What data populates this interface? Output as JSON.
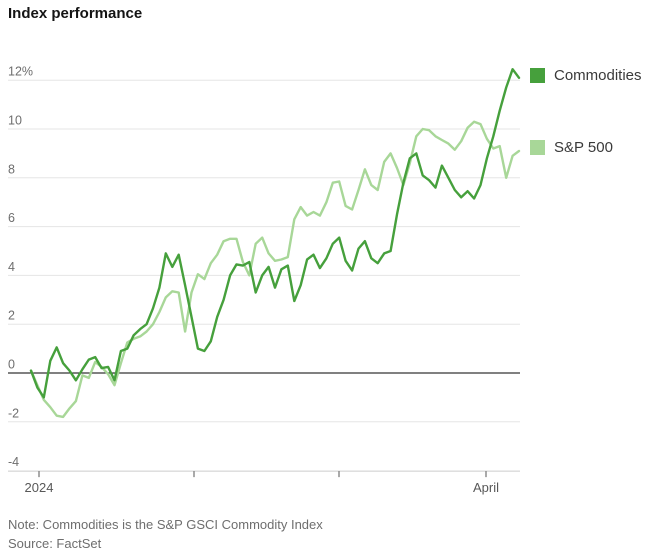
{
  "header": {
    "title": "Index performance"
  },
  "legend": [
    {
      "label": "Commodities",
      "color": "#46a03c"
    },
    {
      "label": "S&P 500",
      "color": "#a8d798"
    }
  ],
  "footnote": {
    "note": "Note: Commodities is the S&P GSCI Commodity Index",
    "source": "Source: FactSet"
  },
  "chart_data": {
    "type": "line",
    "title": "Index performance",
    "unit": "%",
    "ylim": [
      -4,
      12.5
    ],
    "grid": "horizontal",
    "legend_position": "right",
    "x_axis": {
      "ticks": [
        {
          "label": "2024"
        },
        {
          "label": ""
        },
        {
          "label": ""
        },
        {
          "label": "April"
        }
      ]
    },
    "y_axis": {
      "tick_values": [
        12,
        10,
        8,
        6,
        4,
        2,
        0,
        -2,
        -4
      ],
      "tick_labels": [
        "12%",
        "10",
        "8",
        "6",
        "4",
        "2",
        "0",
        "-2",
        "-4"
      ],
      "zero_line": true
    },
    "series": [
      {
        "name": "Commodities",
        "color": "#46a03c",
        "values": [
          0.1,
          -0.6,
          -1.0,
          0.5,
          1.05,
          0.4,
          0.1,
          -0.3,
          0.15,
          0.55,
          0.65,
          0.2,
          0.25,
          -0.3,
          0.9,
          1.0,
          1.55,
          1.8,
          2.0,
          2.65,
          3.5,
          4.9,
          4.35,
          4.85,
          3.6,
          2.3,
          1.0,
          0.9,
          1.3,
          2.3,
          3.0,
          4.0,
          4.45,
          4.4,
          4.55,
          3.3,
          4.0,
          4.35,
          3.5,
          4.25,
          4.4,
          2.95,
          3.6,
          4.65,
          4.85,
          4.3,
          4.7,
          5.3,
          5.55,
          4.6,
          4.2,
          5.1,
          5.4,
          4.7,
          4.5,
          4.9,
          5.0,
          6.5,
          7.8,
          8.8,
          9.0,
          8.1,
          7.9,
          7.6,
          8.5,
          8.0,
          7.5,
          7.2,
          7.45,
          7.15,
          7.7,
          8.8,
          9.7,
          10.75,
          11.7,
          12.45,
          12.1
        ]
      },
      {
        "name": "S&P 500",
        "color": "#a8d798",
        "values": [
          0.1,
          -0.5,
          -1.1,
          -1.4,
          -1.75,
          -1.8,
          -1.45,
          -1.15,
          -0.1,
          -0.2,
          0.45,
          0.25,
          -0.05,
          -0.5,
          0.4,
          1.25,
          1.4,
          1.5,
          1.7,
          2.0,
          2.5,
          3.1,
          3.35,
          3.3,
          1.7,
          3.3,
          4.05,
          3.85,
          4.5,
          4.85,
          5.4,
          5.5,
          5.5,
          4.55,
          4.0,
          5.3,
          5.55,
          4.9,
          4.6,
          4.65,
          4.75,
          6.3,
          6.8,
          6.45,
          6.6,
          6.45,
          7.0,
          7.8,
          7.85,
          6.85,
          6.7,
          7.5,
          8.35,
          7.7,
          7.5,
          8.65,
          9.0,
          8.4,
          7.7,
          8.6,
          9.7,
          10.0,
          9.95,
          9.7,
          9.55,
          9.4,
          9.15,
          9.5,
          10.05,
          10.3,
          10.2,
          9.6,
          9.2,
          9.3,
          8.0,
          8.9,
          9.1
        ]
      }
    ]
  }
}
